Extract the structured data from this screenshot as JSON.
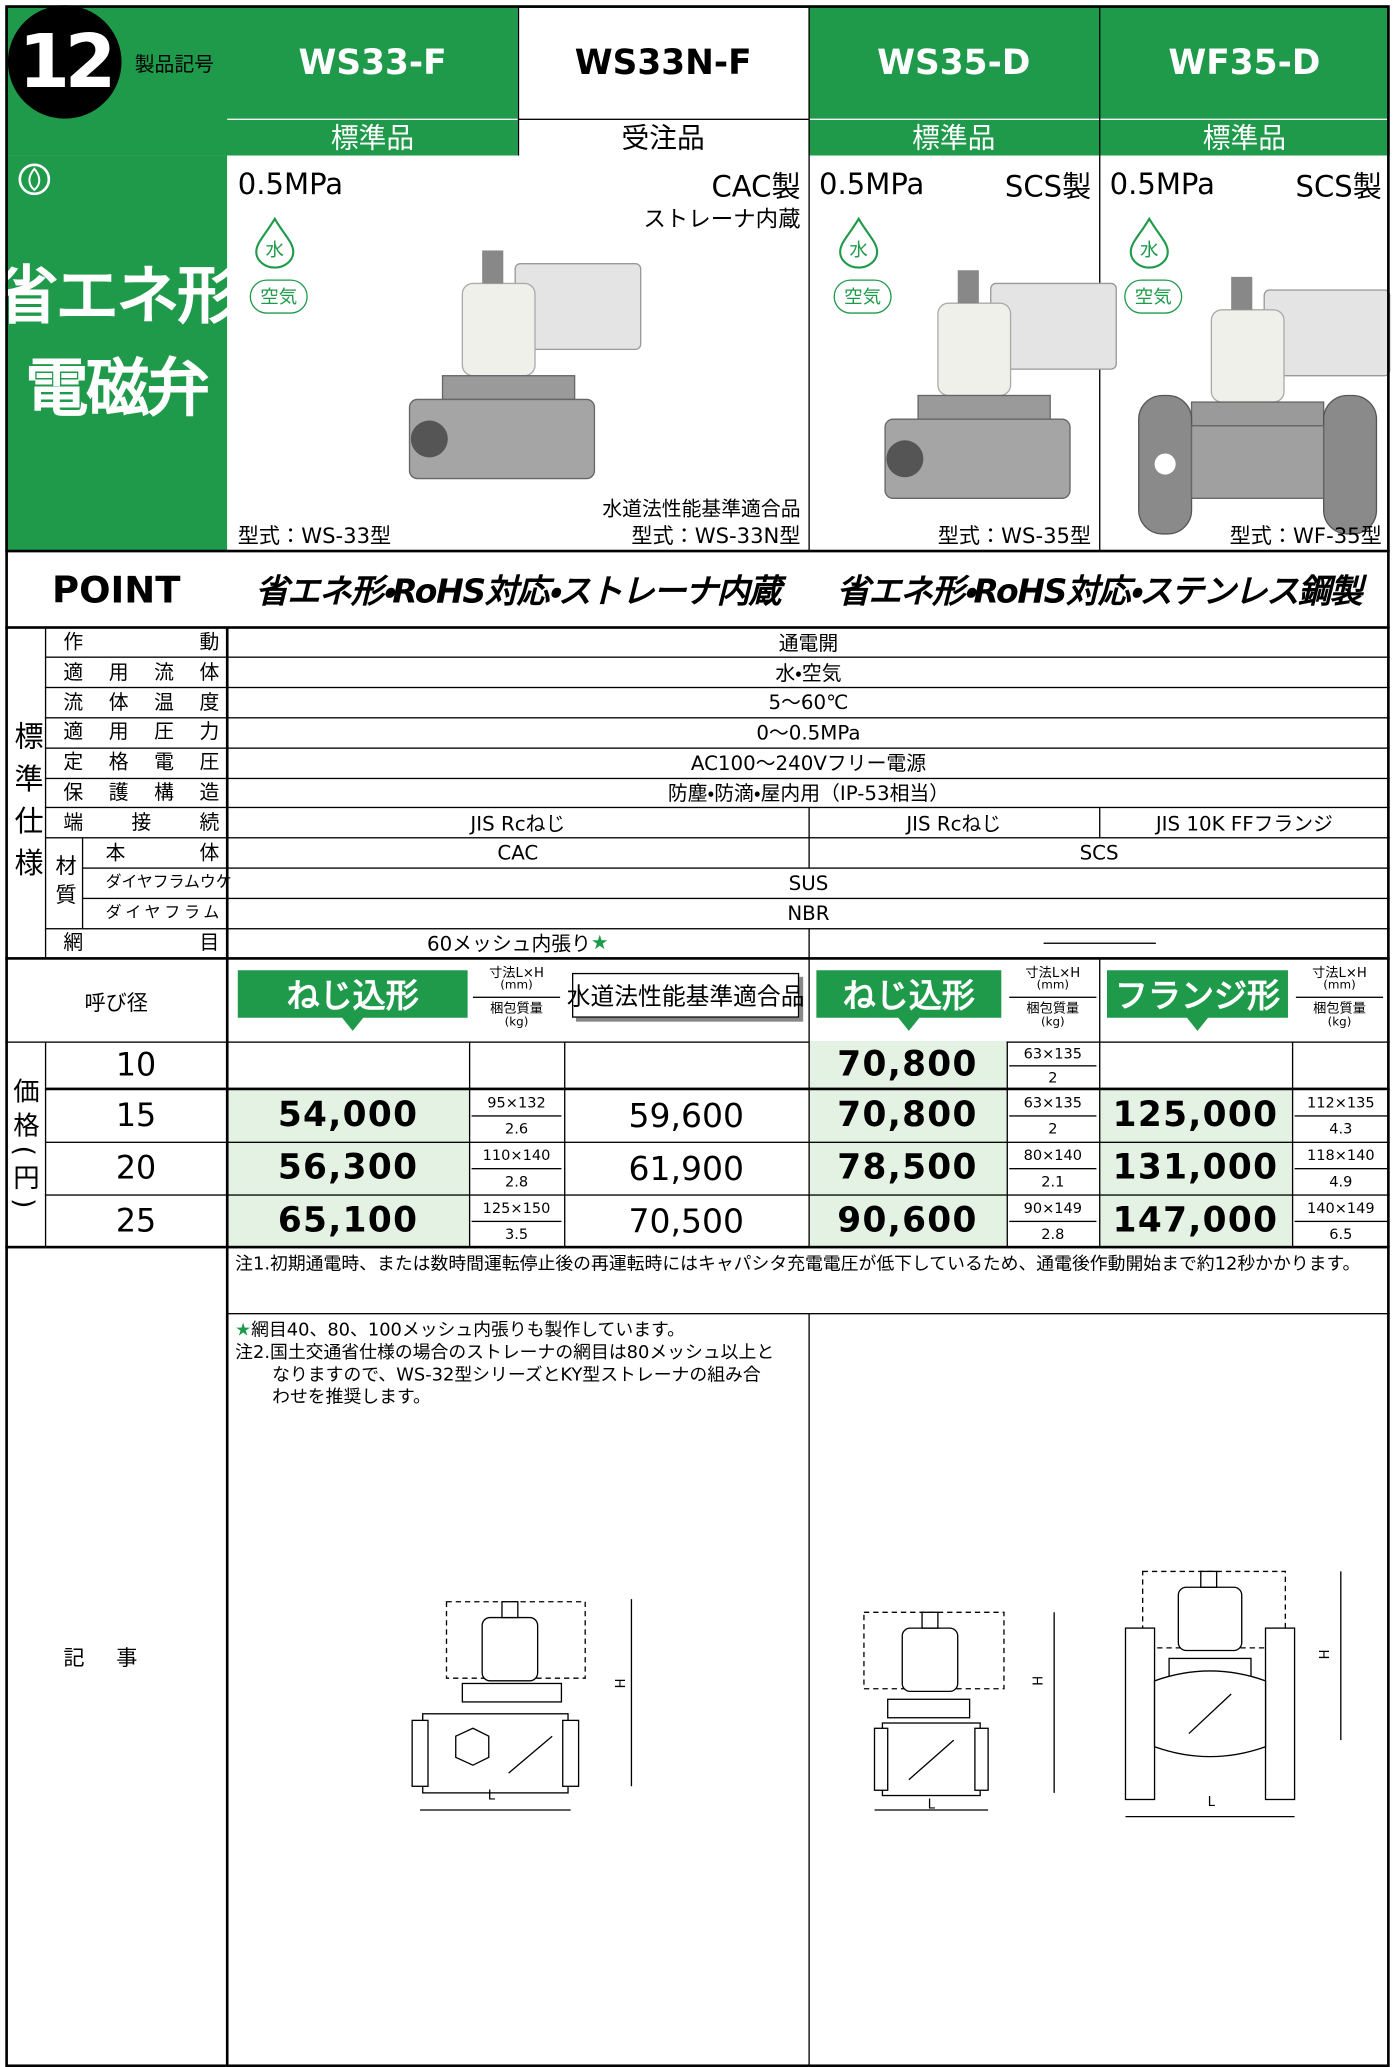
{
  "header": {
    "number": "12",
    "label": "製品記号",
    "models": [
      "WS33-F",
      "WS33N-F",
      "WS35-D",
      "WF35-D"
    ],
    "classes": [
      "標準品",
      "受注品",
      "標準品",
      "標準品"
    ]
  },
  "side": {
    "title_line1": "省エネ形",
    "title_line2": "電磁弁"
  },
  "products": {
    "ws33": {
      "pressure": "0.5MPa",
      "material": "CAC製",
      "feature": "ストレーナ内蔵",
      "fluids": [
        "水",
        "空気"
      ],
      "types": [
        "型式：WS-33型",
        "水道法性能基準適合品",
        "型式：WS-33N型"
      ]
    },
    "ws35": {
      "pressure": "0.5MPa",
      "material": "SCS製",
      "fluids": [
        "水",
        "空気"
      ],
      "type": "型式：WS-35型"
    },
    "wf35": {
      "pressure": "0.5MPa",
      "material": "SCS製",
      "fluids": [
        "水",
        "空気"
      ],
      "type": "型式：WF-35型"
    }
  },
  "point": {
    "label": "POINT",
    "left": "省エネ形・RoHS対応・ストレーナ内蔵",
    "right": "省エネ形・RoHS対応・ステンレス鋼製"
  },
  "specs": {
    "group": "標準仕様",
    "material_group": "材質",
    "rows": [
      {
        "label": "作動",
        "values": [
          "通電開"
        ]
      },
      {
        "label": "適用流体",
        "values": [
          "水・空気"
        ]
      },
      {
        "label": "流体温度",
        "values": [
          "5〜60℃"
        ]
      },
      {
        "label": "適用圧力",
        "values": [
          "0〜0.5MPa"
        ]
      },
      {
        "label": "定格電圧",
        "values": [
          "AC100〜240Vフリー電源"
        ]
      },
      {
        "label": "保護構造",
        "values": [
          "防塵・防滴・屋内用（IP-53相当）"
        ]
      },
      {
        "label": "端接続",
        "values": [
          "JIS Rcねじ",
          "JIS Rcねじ",
          "JIS 10K FFフランジ"
        ]
      },
      {
        "label": "本体",
        "values": [
          "CAC",
          "SCS"
        ]
      },
      {
        "label": "ダイヤフラムウケ",
        "values": [
          "SUS"
        ]
      },
      {
        "label": "ダイヤフラム",
        "values": [
          "NBR"
        ]
      },
      {
        "label": "網目",
        "values": [
          "60メッシュ内張り"
        ],
        "mark": "★"
      }
    ]
  },
  "price": {
    "size_label": "呼び径",
    "group": "価格(円)",
    "headers": [
      "ねじ込形",
      "水道法性能基準適合品",
      "ねじ込形",
      "フランジ形"
    ],
    "dim_label": "寸法L×H",
    "dim_unit": "(mm)",
    "weight_label": "梱包質量",
    "weight_unit": "(kg)",
    "rows": [
      {
        "size": "10",
        "ws35": {
          "price": "70,800",
          "dims": "63×135",
          "weight": "2"
        }
      },
      {
        "size": "15",
        "ws33": {
          "price": "54,000",
          "dims": "95×132",
          "weight": "2.6"
        },
        "ws33n": "59,600",
        "ws35": {
          "price": "70,800",
          "dims": "63×135",
          "weight": "2"
        },
        "wf35": {
          "price": "125,000",
          "dims": "112×135",
          "weight": "4.3"
        }
      },
      {
        "size": "20",
        "ws33": {
          "price": "56,300",
          "dims": "110×140",
          "weight": "2.8"
        },
        "ws33n": "61,900",
        "ws35": {
          "price": "78,500",
          "dims": "80×140",
          "weight": "2.1"
        },
        "wf35": {
          "price": "131,000",
          "dims": "118×140",
          "weight": "4.9"
        }
      },
      {
        "size": "25",
        "ws33": {
          "price": "65,100",
          "dims": "125×150",
          "weight": "3.5"
        },
        "ws33n": "70,500",
        "ws35": {
          "price": "90,600",
          "dims": "90×149",
          "weight": "2.8"
        },
        "wf35": {
          "price": "147,000",
          "dims": "140×149",
          "weight": "6.5"
        }
      }
    ]
  },
  "notes": {
    "label": "記事",
    "note1": "注1.初期通電時、または数時間運転停止後の再運転時にはキャパシタ充電電圧が低下しているため、通電後作動開始まで約12秒かかります。",
    "star": "★",
    "mesh_note": "網目40、80、100メッシュ内張りも製作しています。",
    "note2": "注2.国土交通省仕様の場合のストレーナの網目は80メッシュ以上となりますので、WS-32型シリーズとKY型ストレーナの組み合わせを推奨します。"
  },
  "drawings": {
    "length": "L",
    "height": "H"
  }
}
